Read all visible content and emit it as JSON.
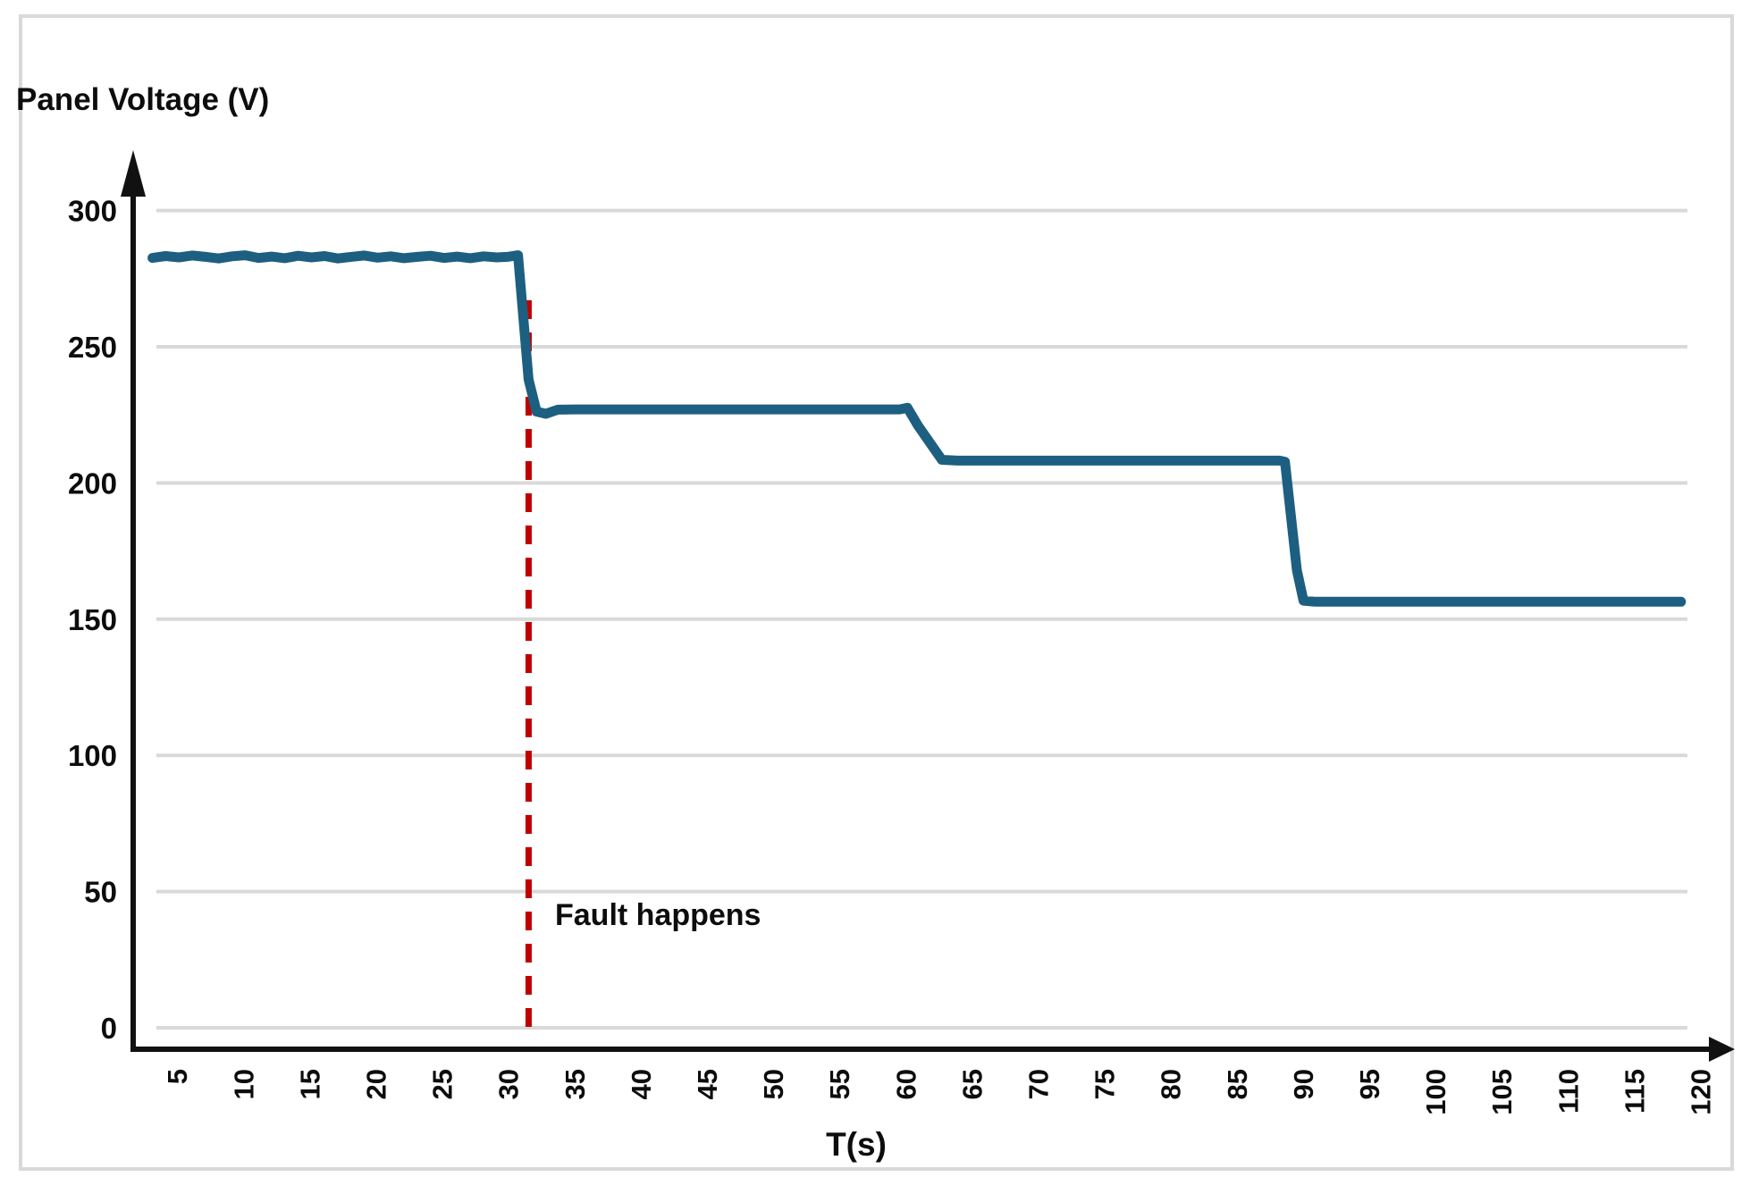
{
  "chart": {
    "y_axis_title": "Panel Voltage (V)",
    "x_axis_title": "T(s)",
    "annotation": "Fault happens"
  },
  "chart_data": {
    "type": "line",
    "title": "",
    "ylabel": "Panel Voltage (V)",
    "xlabel": "T(s)",
    "ylim": [
      0,
      300
    ],
    "y_ticks": [
      0,
      50,
      100,
      150,
      200,
      250,
      300
    ],
    "x_ticks": [
      5,
      10,
      15,
      20,
      25,
      30,
      35,
      40,
      45,
      50,
      55,
      60,
      65,
      70,
      75,
      80,
      85,
      90,
      95,
      100,
      105,
      110,
      115,
      120
    ],
    "grid": "horizontal",
    "legend": "none",
    "annotations": [
      {
        "type": "vline",
        "x": 31.6,
        "label": "Fault happens",
        "style": "dashed",
        "color": "#c00000"
      }
    ],
    "series": [
      {
        "name": "Panel Voltage",
        "color": "#1d5f80",
        "points": [
          [
            3.2,
            282.6
          ],
          [
            4.2,
            283.3
          ],
          [
            5.2,
            282.8
          ],
          [
            6.2,
            283.5
          ],
          [
            7.2,
            283.0
          ],
          [
            8.2,
            282.4
          ],
          [
            9.2,
            283.2
          ],
          [
            10.2,
            283.6
          ],
          [
            11.2,
            282.6
          ],
          [
            12.2,
            283.1
          ],
          [
            13.2,
            282.5
          ],
          [
            14.2,
            283.4
          ],
          [
            15.2,
            282.8
          ],
          [
            16.2,
            283.3
          ],
          [
            17.2,
            282.4
          ],
          [
            18.2,
            283.0
          ],
          [
            19.2,
            283.5
          ],
          [
            20.2,
            282.7
          ],
          [
            21.2,
            283.2
          ],
          [
            22.2,
            282.5
          ],
          [
            23.2,
            283.0
          ],
          [
            24.2,
            283.4
          ],
          [
            25.2,
            282.6
          ],
          [
            26.2,
            283.1
          ],
          [
            27.2,
            282.5
          ],
          [
            28.2,
            283.2
          ],
          [
            29.2,
            282.8
          ],
          [
            30.0,
            283.0
          ],
          [
            30.8,
            283.6
          ],
          [
            31.6,
            238.0
          ],
          [
            32.2,
            226.2
          ],
          [
            32.9,
            225.4
          ],
          [
            33.8,
            226.9
          ],
          [
            35.0,
            227.0
          ],
          [
            59.6,
            227.0
          ],
          [
            60.2,
            227.6
          ],
          [
            61.0,
            221.0
          ],
          [
            62.8,
            208.5
          ],
          [
            64.0,
            208.2
          ],
          [
            88.3,
            208.2
          ],
          [
            88.7,
            207.8
          ],
          [
            89.6,
            168.0
          ],
          [
            90.1,
            156.8
          ],
          [
            91.0,
            156.4
          ],
          [
            118.6,
            156.4
          ]
        ]
      }
    ],
    "key_levels": {
      "pre_fault_voltage": 283,
      "after_first_drop": 227,
      "after_second_drop": 208,
      "after_third_drop": 156,
      "fault_time_s": 31,
      "second_drop_time_s": 60,
      "third_drop_time_s": 89
    },
    "colors": {
      "line": "#1d5f80",
      "fault_line": "#c00000",
      "gridline": "#d9d9d9",
      "axis": "#111111",
      "frame_border": "#d9d9d9"
    }
  }
}
